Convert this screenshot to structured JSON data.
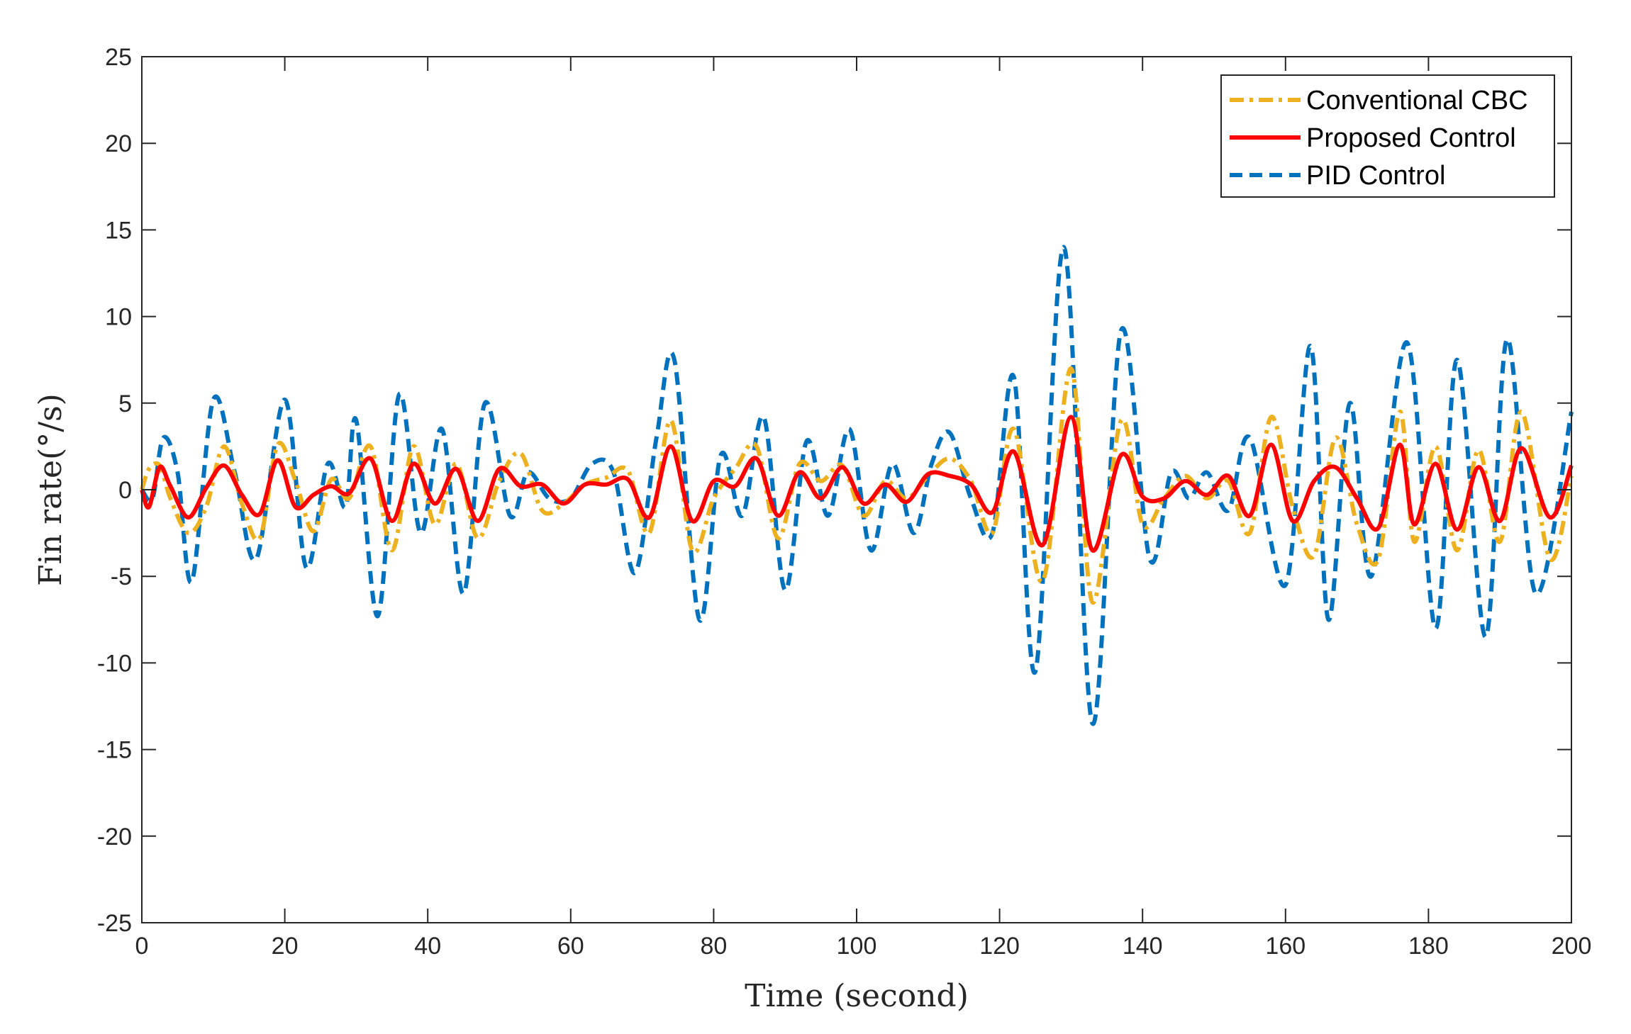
{
  "chart_data": {
    "type": "line",
    "title": "",
    "xlabel": "Time (second)",
    "ylabel": "Fin rate(°/s)",
    "xlim": [
      0,
      200
    ],
    "ylim": [
      -25,
      25
    ],
    "xticks": [
      0,
      20,
      40,
      60,
      80,
      100,
      120,
      140,
      160,
      180,
      200
    ],
    "yticks": [
      -25,
      -20,
      -15,
      -10,
      -5,
      0,
      5,
      10,
      15,
      20,
      25
    ],
    "grid": false,
    "legend_position": "top-right",
    "series": [
      {
        "name": "Conventional CBC",
        "color": "#EDB120",
        "style": "dash-dot",
        "x": [
          0,
          1,
          2.5,
          4,
          6.5,
          9,
          11.5,
          14,
          16.5,
          19,
          21.5,
          24,
          26.5,
          29,
          32,
          35,
          38,
          41,
          44,
          47,
          50,
          53,
          56,
          59,
          62,
          65,
          68,
          71,
          74,
          77,
          80,
          83,
          86,
          89,
          92,
          95,
          98,
          101,
          104,
          107,
          110,
          113,
          116,
          119,
          122,
          126,
          130,
          133,
          137,
          140,
          143,
          146,
          149,
          152,
          155,
          158,
          161,
          164,
          167,
          170,
          173,
          176,
          178,
          181,
          184,
          187,
          190,
          193,
          197,
          200
        ],
        "y": [
          0,
          1.2,
          1.4,
          -0.5,
          -2.5,
          -1,
          2.5,
          -0.8,
          -2.8,
          2.6,
          0.5,
          -2.4,
          0.6,
          -0.5,
          2.5,
          -3.5,
          2.5,
          -2,
          1.5,
          -2.8,
          0.5,
          2.1,
          -1.2,
          -0.8,
          0.3,
          0.7,
          1.1,
          -2.5,
          4,
          -3.5,
          -0.5,
          1.2,
          2.5,
          -2.8,
          1.5,
          0.5,
          1.4,
          -1.5,
          0.5,
          -0.5,
          0.8,
          1.8,
          0.5,
          -2.5,
          3.5,
          -5.3,
          7,
          -6.5,
          4,
          -2,
          -0.5,
          0.8,
          -0.5,
          0.5,
          -2.5,
          4.2,
          -1,
          -3.8,
          3,
          -2,
          -4,
          4.5,
          -3,
          2.5,
          -3.5,
          2.3,
          -3,
          4.5,
          -4,
          0.8
        ]
      },
      {
        "name": "Proposed Control",
        "color": "#FF0000",
        "style": "solid",
        "x": [
          0,
          1,
          2.5,
          4,
          6.5,
          9,
          11.5,
          14,
          16.5,
          19,
          21.5,
          24,
          26.5,
          29,
          32,
          35,
          38,
          41,
          44,
          47,
          50,
          53,
          56,
          59,
          62,
          65,
          68,
          71,
          74,
          77,
          80,
          83,
          86,
          89,
          92,
          95,
          98,
          101,
          104,
          107,
          110,
          113,
          116,
          119,
          122,
          126,
          130,
          133,
          137,
          140,
          143,
          146,
          149,
          152,
          155,
          158,
          161,
          164,
          167,
          170,
          173,
          176,
          178,
          181,
          184,
          187,
          190,
          193,
          197,
          200
        ],
        "y": [
          0,
          -1,
          1.3,
          0.2,
          -1.6,
          0.1,
          1.4,
          -0.3,
          -1.4,
          1.7,
          -1,
          -0.3,
          0.2,
          -0.2,
          1.8,
          -1.8,
          1.5,
          -0.8,
          1.2,
          -1.8,
          1.2,
          0.2,
          0.3,
          -0.8,
          0.3,
          0.3,
          0.6,
          -1.6,
          2.5,
          -1.8,
          0.5,
          0.2,
          1.8,
          -1.5,
          1,
          -0.5,
          1.3,
          -0.8,
          0.3,
          -0.7,
          0.9,
          0.8,
          0.3,
          -1.3,
          2.2,
          -3.2,
          4.2,
          -3.5,
          2,
          -0.4,
          -0.5,
          0.5,
          -0.3,
          0.8,
          -1.5,
          2.6,
          -1.8,
          0.5,
          1.3,
          -0.5,
          -2.2,
          2.6,
          -2,
          1.5,
          -2.3,
          1.3,
          -1.8,
          2.4,
          -1.6,
          1.4
        ]
      },
      {
        "name": "PID Control",
        "color": "#0072BD",
        "style": "dashed",
        "x": [
          0,
          1.5,
          3,
          5,
          7,
          10,
          13,
          16,
          20,
          23,
          26,
          28.5,
          30,
          33,
          36,
          39,
          42,
          45,
          48,
          51.5,
          54,
          57,
          60,
          63,
          66,
          69,
          72,
          74.5,
          78,
          81,
          84,
          87,
          90,
          93,
          96,
          99,
          102,
          105,
          108,
          110.5,
          113,
          116,
          119,
          122,
          125,
          129,
          133,
          137,
          141,
          144,
          146.5,
          149,
          152,
          155,
          160,
          163.5,
          166,
          169,
          172,
          177,
          181,
          184,
          188,
          191,
          195,
          200
        ],
        "y": [
          0,
          -0.5,
          3,
          1,
          -5.3,
          5.2,
          1,
          -4,
          5.2,
          -4.5,
          1.5,
          -1,
          4,
          -7.3,
          5.5,
          -2.5,
          3.5,
          -6,
          5,
          -1.5,
          1,
          -0.5,
          -0.5,
          1.5,
          1,
          -4.8,
          3,
          7.5,
          -7.5,
          2,
          -1.5,
          4.2,
          -5.8,
          2.8,
          -1.5,
          3.5,
          -3.5,
          1.5,
          -2.5,
          1.5,
          3.3,
          -0.5,
          -2.5,
          6.5,
          -10.5,
          14,
          -13.5,
          9.2,
          -4,
          1,
          -0.5,
          1,
          -1.2,
          3,
          -5.5,
          8.3,
          -7.5,
          5,
          -5,
          8.5,
          -8,
          7.5,
          -8.5,
          8.7,
          -6,
          4.5
        ]
      }
    ]
  }
}
